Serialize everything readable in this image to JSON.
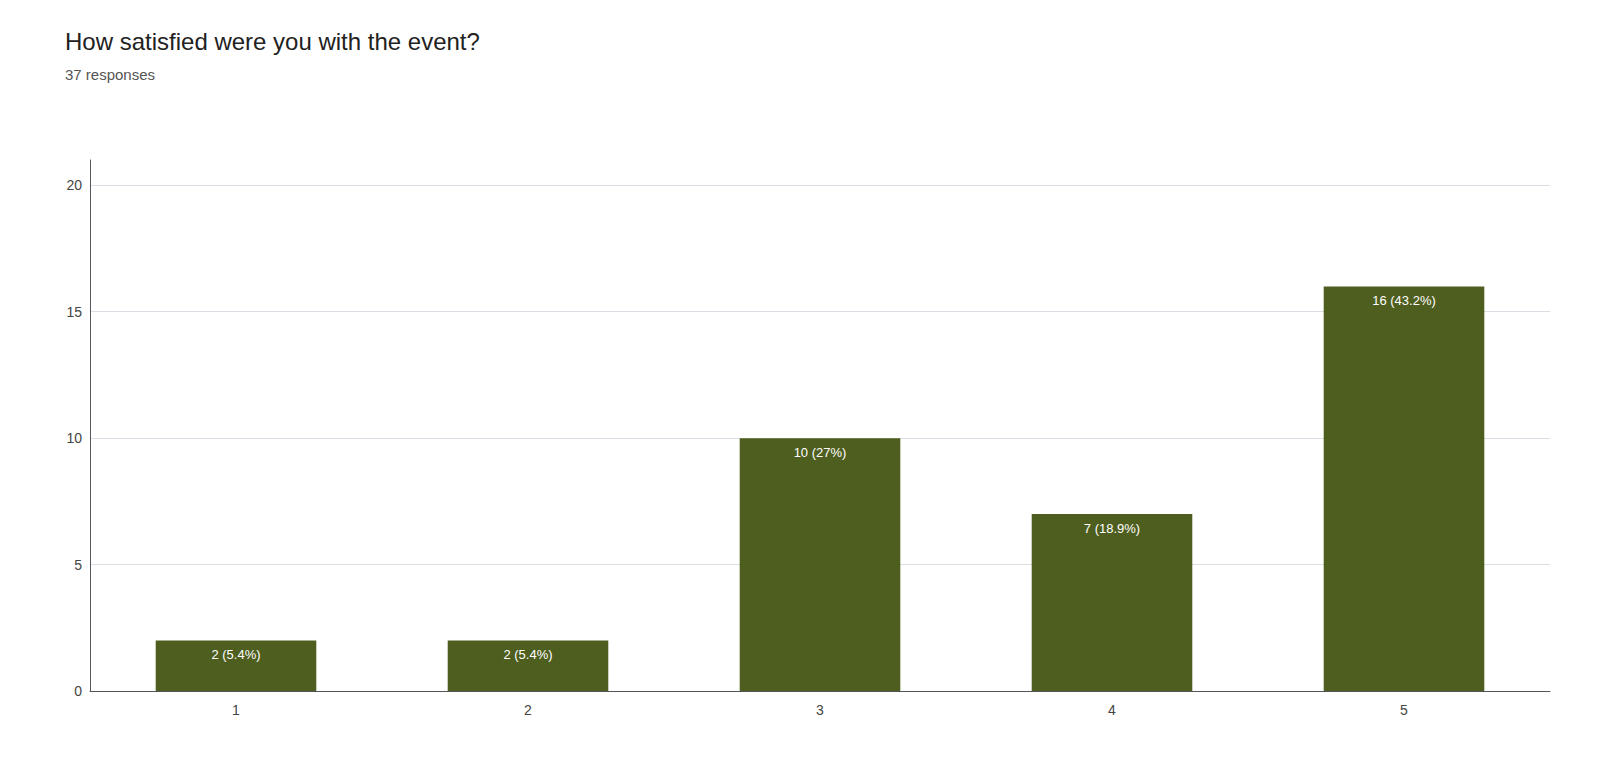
{
  "chart_data": {
    "type": "bar",
    "title": "How satisfied were you with the event?",
    "subtitle": "37 responses",
    "categories": [
      1,
      2,
      3,
      4,
      5
    ],
    "values": [
      2,
      2,
      10,
      7,
      16
    ],
    "value_labels": [
      "2 (5.4%)",
      "2 (5.4%)",
      "10 (27%)",
      "7 (18.9%)",
      "16 (43.2%)"
    ],
    "data_labels": true,
    "color": "#4e5e1e",
    "ylim": [
      0,
      21
    ],
    "yticks": [
      0,
      5,
      10,
      15,
      20
    ],
    "grid": true
  }
}
